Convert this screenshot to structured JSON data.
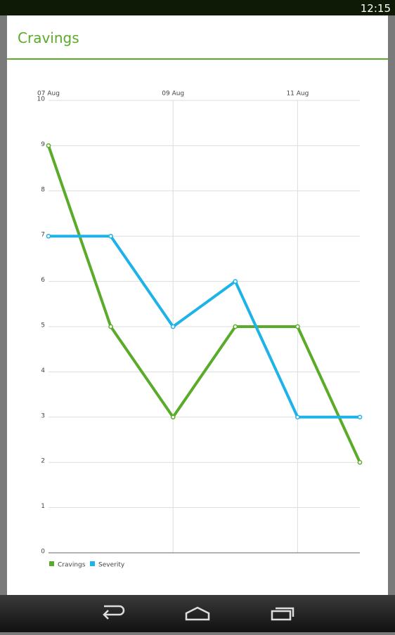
{
  "status_bar": {
    "time": "12:15"
  },
  "dialog": {
    "title": "Cravings"
  },
  "chart_data": {
    "type": "line",
    "categories": [
      "07 Aug",
      null,
      "09 Aug",
      null,
      "11 Aug",
      null
    ],
    "series": [
      {
        "name": "Cravings",
        "color": "#5aab2a",
        "values": [
          9,
          5,
          3,
          5,
          5,
          2
        ]
      },
      {
        "name": "Severity",
        "color": "#1db3e8",
        "values": [
          7,
          7,
          5,
          6,
          3,
          3
        ]
      }
    ],
    "ylim": [
      0,
      10
    ],
    "yticks": [
      0,
      1,
      2,
      3,
      4,
      5,
      6,
      7,
      8,
      9,
      10
    ],
    "grid": true,
    "legend": "bottom-left"
  }
}
